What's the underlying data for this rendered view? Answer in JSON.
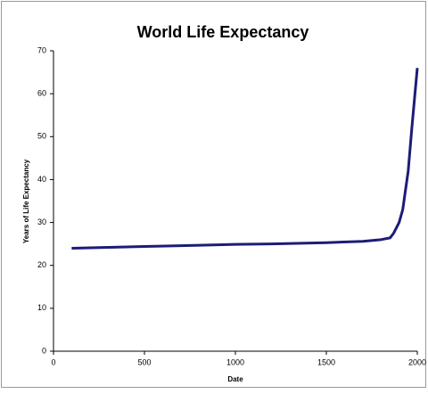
{
  "chart_data": {
    "type": "line",
    "title": "World Life Expectancy",
    "x_label": "Date",
    "y_label": "Years of Life Expectancy",
    "x": [
      100,
      300,
      500,
      700,
      1000,
      1200,
      1500,
      1700,
      1800,
      1850,
      1870,
      1900,
      1920,
      1950,
      1970,
      2000
    ],
    "series": [
      {
        "name": "Life Expectancy",
        "color": "#1c1c78",
        "values": [
          24,
          24.2,
          24.4,
          24.6,
          24.9,
          25.0,
          25.3,
          25.6,
          26,
          26.4,
          27.5,
          30,
          33,
          42,
          52,
          66
        ]
      }
    ],
    "xlim": [
      0,
      2000
    ],
    "xticks": [
      0,
      500,
      1000,
      1500,
      2000
    ],
    "ylim": [
      0,
      70
    ],
    "yticks": [
      0,
      10,
      20,
      30,
      40,
      50,
      60,
      70
    ],
    "grid": false,
    "legend": false
  }
}
